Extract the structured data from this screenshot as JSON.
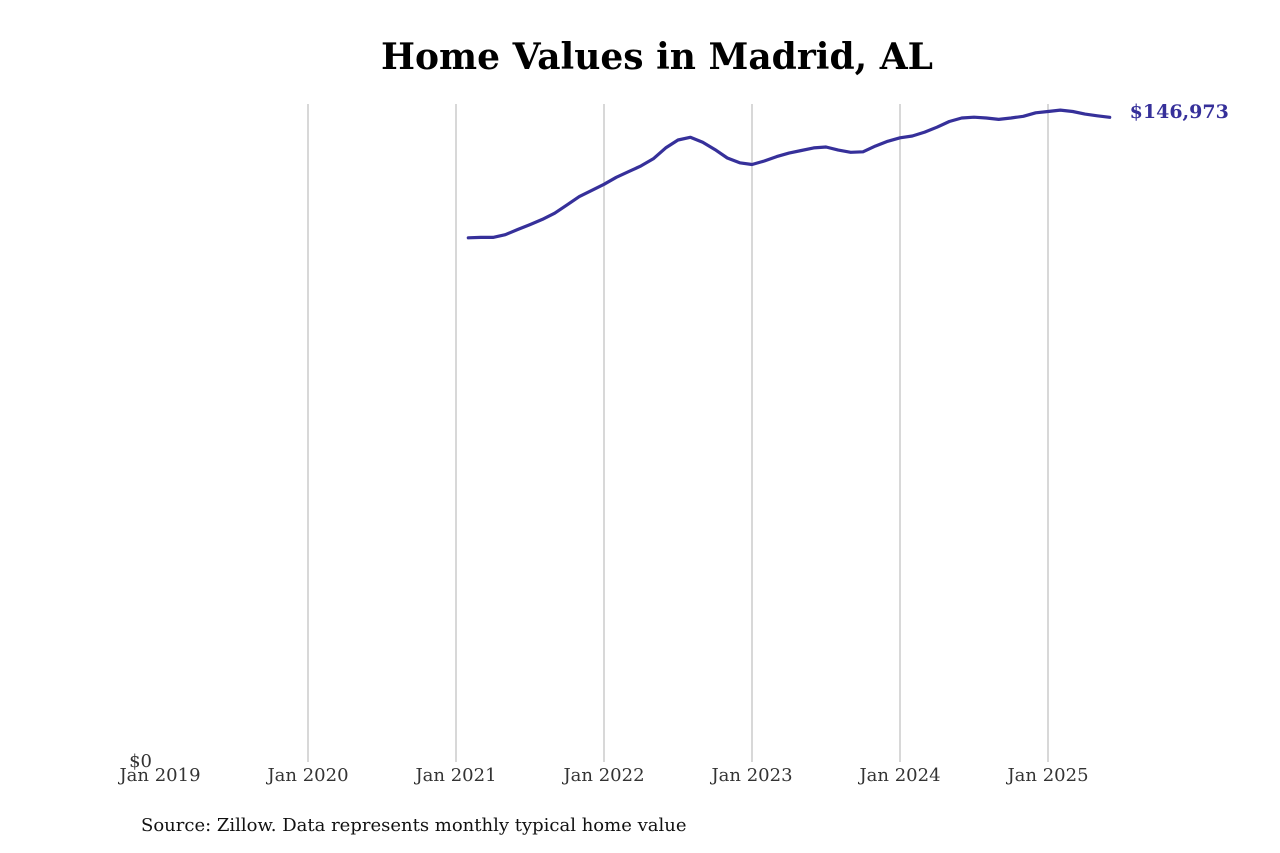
{
  "chart_data": {
    "type": "line",
    "title": "Home Values in Madrid, AL",
    "xlabel": "",
    "ylabel": "",
    "x_ticks": [
      "Jan 2019",
      "Jan 2020",
      "Jan 2021",
      "Jan 2022",
      "Jan 2023",
      "Jan 2024",
      "Jan 2025"
    ],
    "y_ticks": [
      "$0"
    ],
    "ylim": [
      0,
      150000
    ],
    "xlim": [
      "2019-01",
      "2025-10"
    ],
    "grid": "vertical lines at each January tick",
    "end_label": "$146,973",
    "line_color": "#36309a",
    "series": [
      {
        "x": [
          "2021-02",
          "2021-03",
          "2021-04",
          "2021-05",
          "2021-06",
          "2021-07",
          "2021-08",
          "2021-09",
          "2021-10",
          "2021-11",
          "2021-12",
          "2022-01",
          "2022-02",
          "2022-03",
          "2022-04",
          "2022-05",
          "2022-06",
          "2022-07",
          "2022-08",
          "2022-09",
          "2022-10",
          "2022-11",
          "2022-12",
          "2023-01",
          "2023-02",
          "2023-03",
          "2023-04",
          "2023-05",
          "2023-06",
          "2023-07",
          "2023-08",
          "2023-09",
          "2023-10",
          "2023-11",
          "2023-12",
          "2024-01",
          "2024-02",
          "2024-03",
          "2024-04",
          "2024-05",
          "2024-06",
          "2024-07",
          "2024-08",
          "2024-09",
          "2024-10",
          "2024-11",
          "2024-12",
          "2025-01",
          "2025-02",
          "2025-03",
          "2025-04",
          "2025-05",
          "2025-06"
        ],
        "y": [
          119500,
          119600,
          119600,
          120200,
          121400,
          122500,
          123700,
          125100,
          127000,
          128900,
          130300,
          131700,
          133300,
          134600,
          135900,
          137500,
          140000,
          141800,
          142400,
          141300,
          139600,
          137700,
          136600,
          136200,
          137000,
          138000,
          138800,
          139400,
          140000,
          140200,
          139500,
          139000,
          139100,
          140400,
          141500,
          142300,
          142700,
          143600,
          144700,
          146000,
          146800,
          147000,
          146800,
          146500,
          146800,
          147200,
          148000,
          148300,
          148600,
          148300,
          147700,
          147300,
          146973
        ]
      }
    ]
  },
  "source": "Source: Zillow. Data represents monthly typical home value"
}
